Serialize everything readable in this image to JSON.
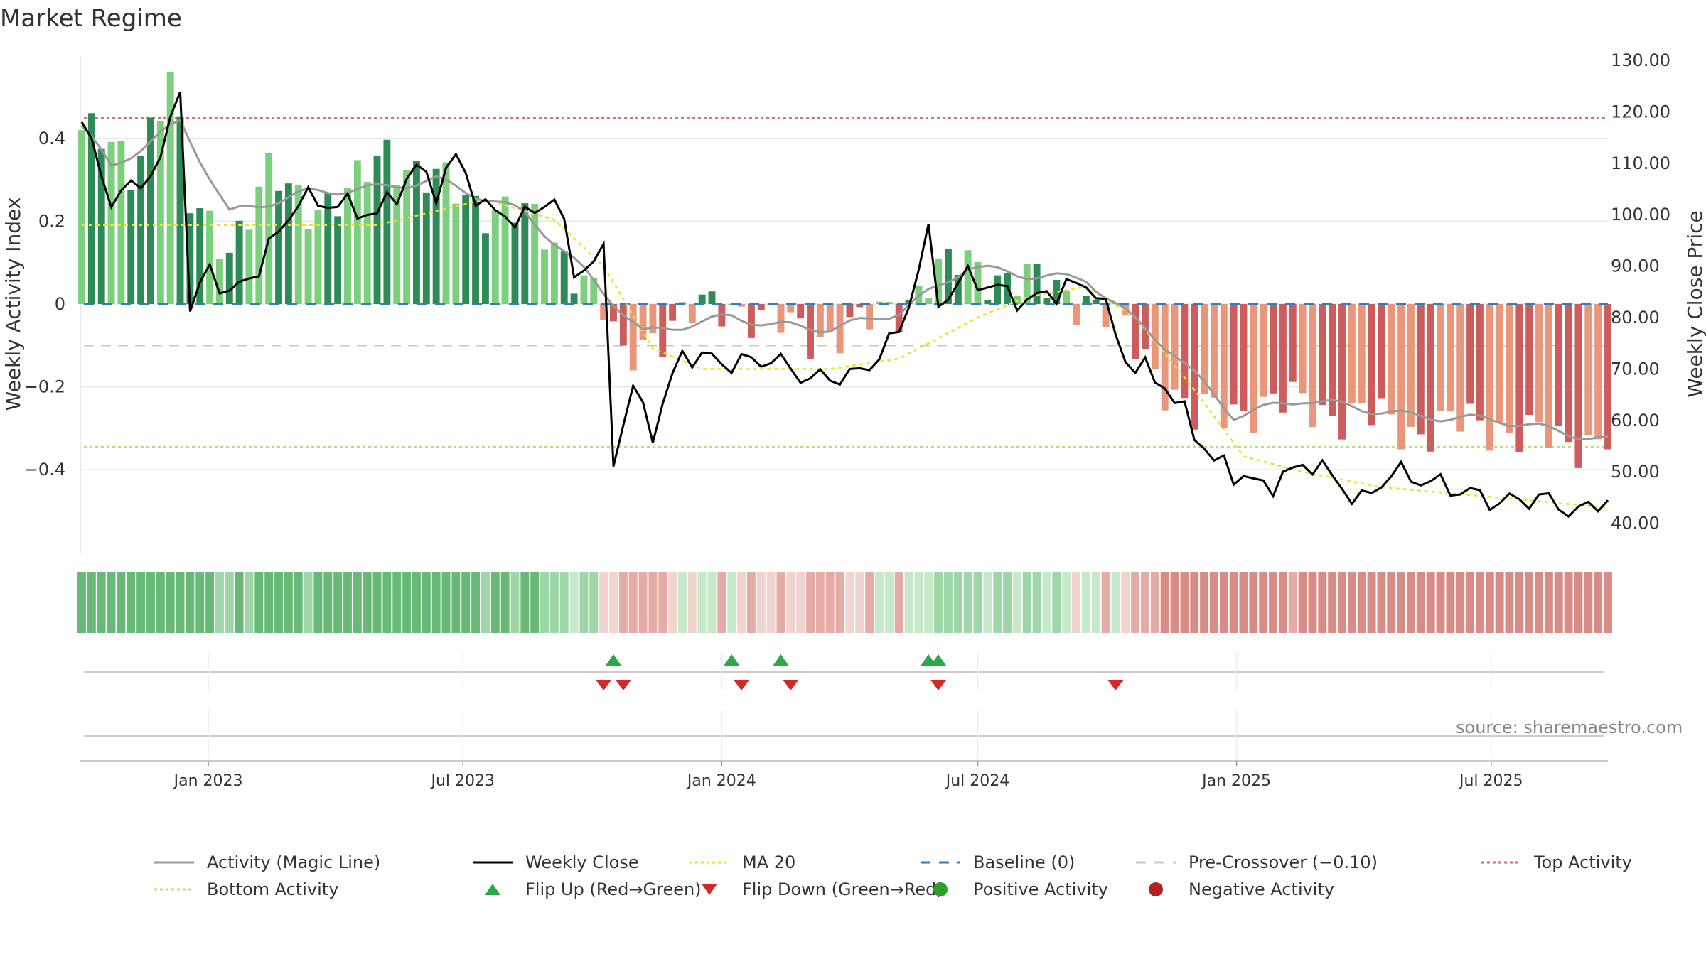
{
  "title": "Market Regime",
  "source": "source: sharemaestro.com",
  "colors": {
    "pos_strong": "#2e8b57",
    "pos_weak": "#7ccf7c",
    "neg_strong": "#cd5c5c",
    "neg_weak": "#e9967a",
    "magic_line": "#999999",
    "close": "#000000",
    "ma20": "#f0e030",
    "baseline": "#2f7fbf",
    "precross": "#c8c8c8",
    "top": "#e06080",
    "bottom": "#b8e080",
    "flip_up": "#2aa84a",
    "flip_down": "#d62728",
    "pos_dot": "#2aa02a",
    "neg_dot": "#b22222"
  },
  "chart_data": {
    "type": "bar",
    "x_start": "2022-10-03",
    "x_end": "2025-09-22",
    "x_ticks": [
      "2023-01-01",
      "2023-07-01",
      "2024-01-01",
      "2024-07-01",
      "2025-01-01",
      "2025-07-01"
    ],
    "x_tick_labels": [
      "Jan 2023",
      "Jul 2023",
      "Jan 2024",
      "Jul 2024",
      "Jan 2025",
      "Jul 2025"
    ],
    "left_axis": {
      "label": "Weekly Activity Index",
      "lim": [
        -0.6,
        0.6
      ],
      "ticks": [
        0.4,
        0.2,
        0,
        -0.2,
        -0.4
      ],
      "tick_labels": [
        "0.4",
        "0.2",
        "0",
        "−0.2",
        "−0.4"
      ]
    },
    "right_axis": {
      "label": "Weekly Close Price",
      "lim": [
        35,
        130
      ],
      "ticks": [
        130,
        120,
        110,
        100,
        90,
        80,
        70,
        60,
        50,
        40
      ],
      "tick_labels": [
        "130.00",
        "120.00",
        "110.00",
        "100.00",
        "90.00",
        "80.00",
        "70.00",
        "60.00",
        "50.00",
        "40.00"
      ]
    },
    "reference_lines": {
      "baseline": 0,
      "pre_crossover": -0.1,
      "top_activity": 0.45,
      "bottom_activity": -0.345
    },
    "activity_keys": [
      [
        "2022-10-03",
        0.42
      ],
      [
        "2022-11-07",
        0.33
      ],
      [
        "2022-12-05",
        0.55
      ],
      [
        "2022-12-19",
        0.23
      ],
      [
        "2023-01-16",
        0.15
      ],
      [
        "2023-02-13",
        0.3
      ],
      [
        "2023-03-13",
        0.25
      ],
      [
        "2023-04-10",
        0.25
      ],
      [
        "2023-05-08",
        0.38
      ],
      [
        "2023-06-05",
        0.3
      ],
      [
        "2023-07-03",
        0.26
      ],
      [
        "2023-08-07",
        0.22
      ],
      [
        "2023-09-04",
        0.15
      ],
      [
        "2023-09-25",
        0.07
      ],
      [
        "2023-10-09",
        -0.02
      ],
      [
        "2023-10-23",
        -0.15
      ],
      [
        "2023-11-06",
        -0.08
      ],
      [
        "2023-12-04",
        -0.04
      ],
      [
        "2024-01-08",
        0.01
      ],
      [
        "2024-02-05",
        -0.05
      ],
      [
        "2024-03-04",
        -0.07
      ],
      [
        "2024-04-08",
        -0.06
      ],
      [
        "2024-05-06",
        0.0
      ],
      [
        "2024-05-27",
        0.06
      ],
      [
        "2024-06-24",
        0.1
      ],
      [
        "2024-08-05",
        0.05
      ],
      [
        "2024-09-16",
        0.02
      ],
      [
        "2024-10-07",
        -0.05
      ],
      [
        "2024-11-04",
        -0.15
      ],
      [
        "2024-12-02",
        -0.28
      ],
      [
        "2025-01-13",
        -0.24
      ],
      [
        "2025-03-03",
        -0.25
      ],
      [
        "2025-05-05",
        -0.3
      ],
      [
        "2025-07-07",
        -0.29
      ],
      [
        "2025-08-18",
        -0.34
      ],
      [
        "2025-09-22",
        -0.31
      ]
    ],
    "close_keys": [
      [
        "2022-10-03",
        118
      ],
      [
        "2022-10-24",
        103
      ],
      [
        "2022-11-07",
        105
      ],
      [
        "2022-11-28",
        110
      ],
      [
        "2022-12-12",
        126
      ],
      [
        "2022-12-19",
        81
      ],
      [
        "2023-01-02",
        90
      ],
      [
        "2023-01-16",
        84
      ],
      [
        "2023-02-06",
        90
      ],
      [
        "2023-03-06",
        103
      ],
      [
        "2023-04-03",
        102
      ],
      [
        "2023-05-01",
        100
      ],
      [
        "2023-05-29",
        109
      ],
      [
        "2023-06-12",
        105
      ],
      [
        "2023-06-26",
        111
      ],
      [
        "2023-07-17",
        101
      ],
      [
        "2023-08-14",
        99
      ],
      [
        "2023-09-04",
        104
      ],
      [
        "2023-09-18",
        89
      ],
      [
        "2023-10-09",
        92
      ],
      [
        "2023-10-16",
        53
      ],
      [
        "2023-10-30",
        66
      ],
      [
        "2023-11-13",
        58
      ],
      [
        "2023-12-04",
        73
      ],
      [
        "2024-01-08",
        71
      ],
      [
        "2024-02-05",
        72
      ],
      [
        "2024-03-04",
        68
      ],
      [
        "2024-04-08",
        69
      ],
      [
        "2024-05-06",
        77
      ],
      [
        "2024-05-27",
        96
      ],
      [
        "2024-06-03",
        83
      ],
      [
        "2024-06-24",
        88
      ],
      [
        "2024-08-05",
        83
      ],
      [
        "2024-09-02",
        86
      ],
      [
        "2024-09-23",
        86
      ],
      [
        "2024-10-14",
        72
      ],
      [
        "2024-11-11",
        67
      ],
      [
        "2024-12-16",
        52
      ],
      [
        "2025-01-20",
        47
      ],
      [
        "2025-02-24",
        52
      ],
      [
        "2025-03-31",
        44
      ],
      [
        "2025-04-21",
        50
      ],
      [
        "2025-06-02",
        47
      ],
      [
        "2025-07-07",
        44
      ],
      [
        "2025-08-04",
        45
      ],
      [
        "2025-09-01",
        42
      ],
      [
        "2025-09-22",
        45
      ]
    ],
    "magic_keys": [
      [
        "2022-10-03",
        0.43
      ],
      [
        "2022-10-24",
        0.33
      ],
      [
        "2022-12-12",
        0.44
      ],
      [
        "2023-01-16",
        0.22
      ],
      [
        "2023-03-13",
        0.27
      ],
      [
        "2023-05-01",
        0.28
      ],
      [
        "2023-06-12",
        0.3
      ],
      [
        "2023-08-14",
        0.22
      ],
      [
        "2023-09-25",
        0.08
      ],
      [
        "2023-11-06",
        -0.07
      ],
      [
        "2024-01-08",
        -0.03
      ],
      [
        "2024-02-05",
        -0.05
      ],
      [
        "2024-03-18",
        -0.06
      ],
      [
        "2024-05-06",
        -0.02
      ],
      [
        "2024-06-24",
        0.09
      ],
      [
        "2024-08-05",
        0.07
      ],
      [
        "2024-09-16",
        0.06
      ],
      [
        "2024-10-14",
        -0.02
      ],
      [
        "2024-11-18",
        -0.12
      ],
      [
        "2024-12-30",
        -0.27
      ],
      [
        "2025-02-17",
        -0.23
      ],
      [
        "2025-05-05",
        -0.27
      ],
      [
        "2025-07-07",
        -0.28
      ],
      [
        "2025-09-22",
        -0.33
      ]
    ],
    "ma20_keys": [
      [
        "2022-10-03",
        98
      ],
      [
        "2023-05-01",
        98
      ],
      [
        "2023-07-17",
        103
      ],
      [
        "2023-09-04",
        99
      ],
      [
        "2023-10-09",
        90
      ],
      [
        "2023-11-13",
        74
      ],
      [
        "2023-12-18",
        70
      ],
      [
        "2024-01-15",
        70
      ],
      [
        "2024-03-18",
        70
      ],
      [
        "2024-05-06",
        72
      ],
      [
        "2024-07-01",
        80
      ],
      [
        "2024-08-05",
        84
      ],
      [
        "2024-09-16",
        86
      ],
      [
        "2024-10-21",
        80
      ],
      [
        "2024-12-02",
        66
      ],
      [
        "2025-01-06",
        53
      ],
      [
        "2025-02-17",
        50
      ],
      [
        "2025-04-14",
        47
      ],
      [
        "2025-07-07",
        45
      ],
      [
        "2025-09-22",
        43
      ]
    ],
    "flip_up": [
      "2023-10-16",
      "2024-01-08",
      "2024-02-12",
      "2024-05-27",
      "2024-06-03"
    ],
    "flip_down": [
      "2023-10-09",
      "2023-10-23",
      "2024-01-15",
      "2024-02-19",
      "2024-06-03",
      "2024-10-07"
    ]
  },
  "legend": [
    {
      "label": "Activity (Magic Line)",
      "kind": "solid",
      "color": "#999999"
    },
    {
      "label": "Weekly Close",
      "kind": "solid",
      "color": "#000000"
    },
    {
      "label": "MA 20",
      "kind": "dotted",
      "color": "#f0e030"
    },
    {
      "label": "Baseline (0)",
      "kind": "dashed",
      "color": "#2f7fbf"
    },
    {
      "label": "Pre-Crossover (−0.10)",
      "kind": "dashed",
      "color": "#c8c8c8"
    },
    {
      "label": "Top Activity",
      "kind": "dotted",
      "color": "#e06080"
    },
    {
      "label": "Bottom Activity",
      "kind": "dotted",
      "color": "#b8e080"
    },
    {
      "label": "Flip Up (Red→Green)",
      "kind": "up",
      "color": "#2aa84a"
    },
    {
      "label": "Flip Down (Green→Red)",
      "kind": "down",
      "color": "#d62728"
    },
    {
      "label": "Positive Activity",
      "kind": "dot",
      "color": "#2aa02a"
    },
    {
      "label": "Negative Activity",
      "kind": "dot",
      "color": "#b22222"
    }
  ]
}
